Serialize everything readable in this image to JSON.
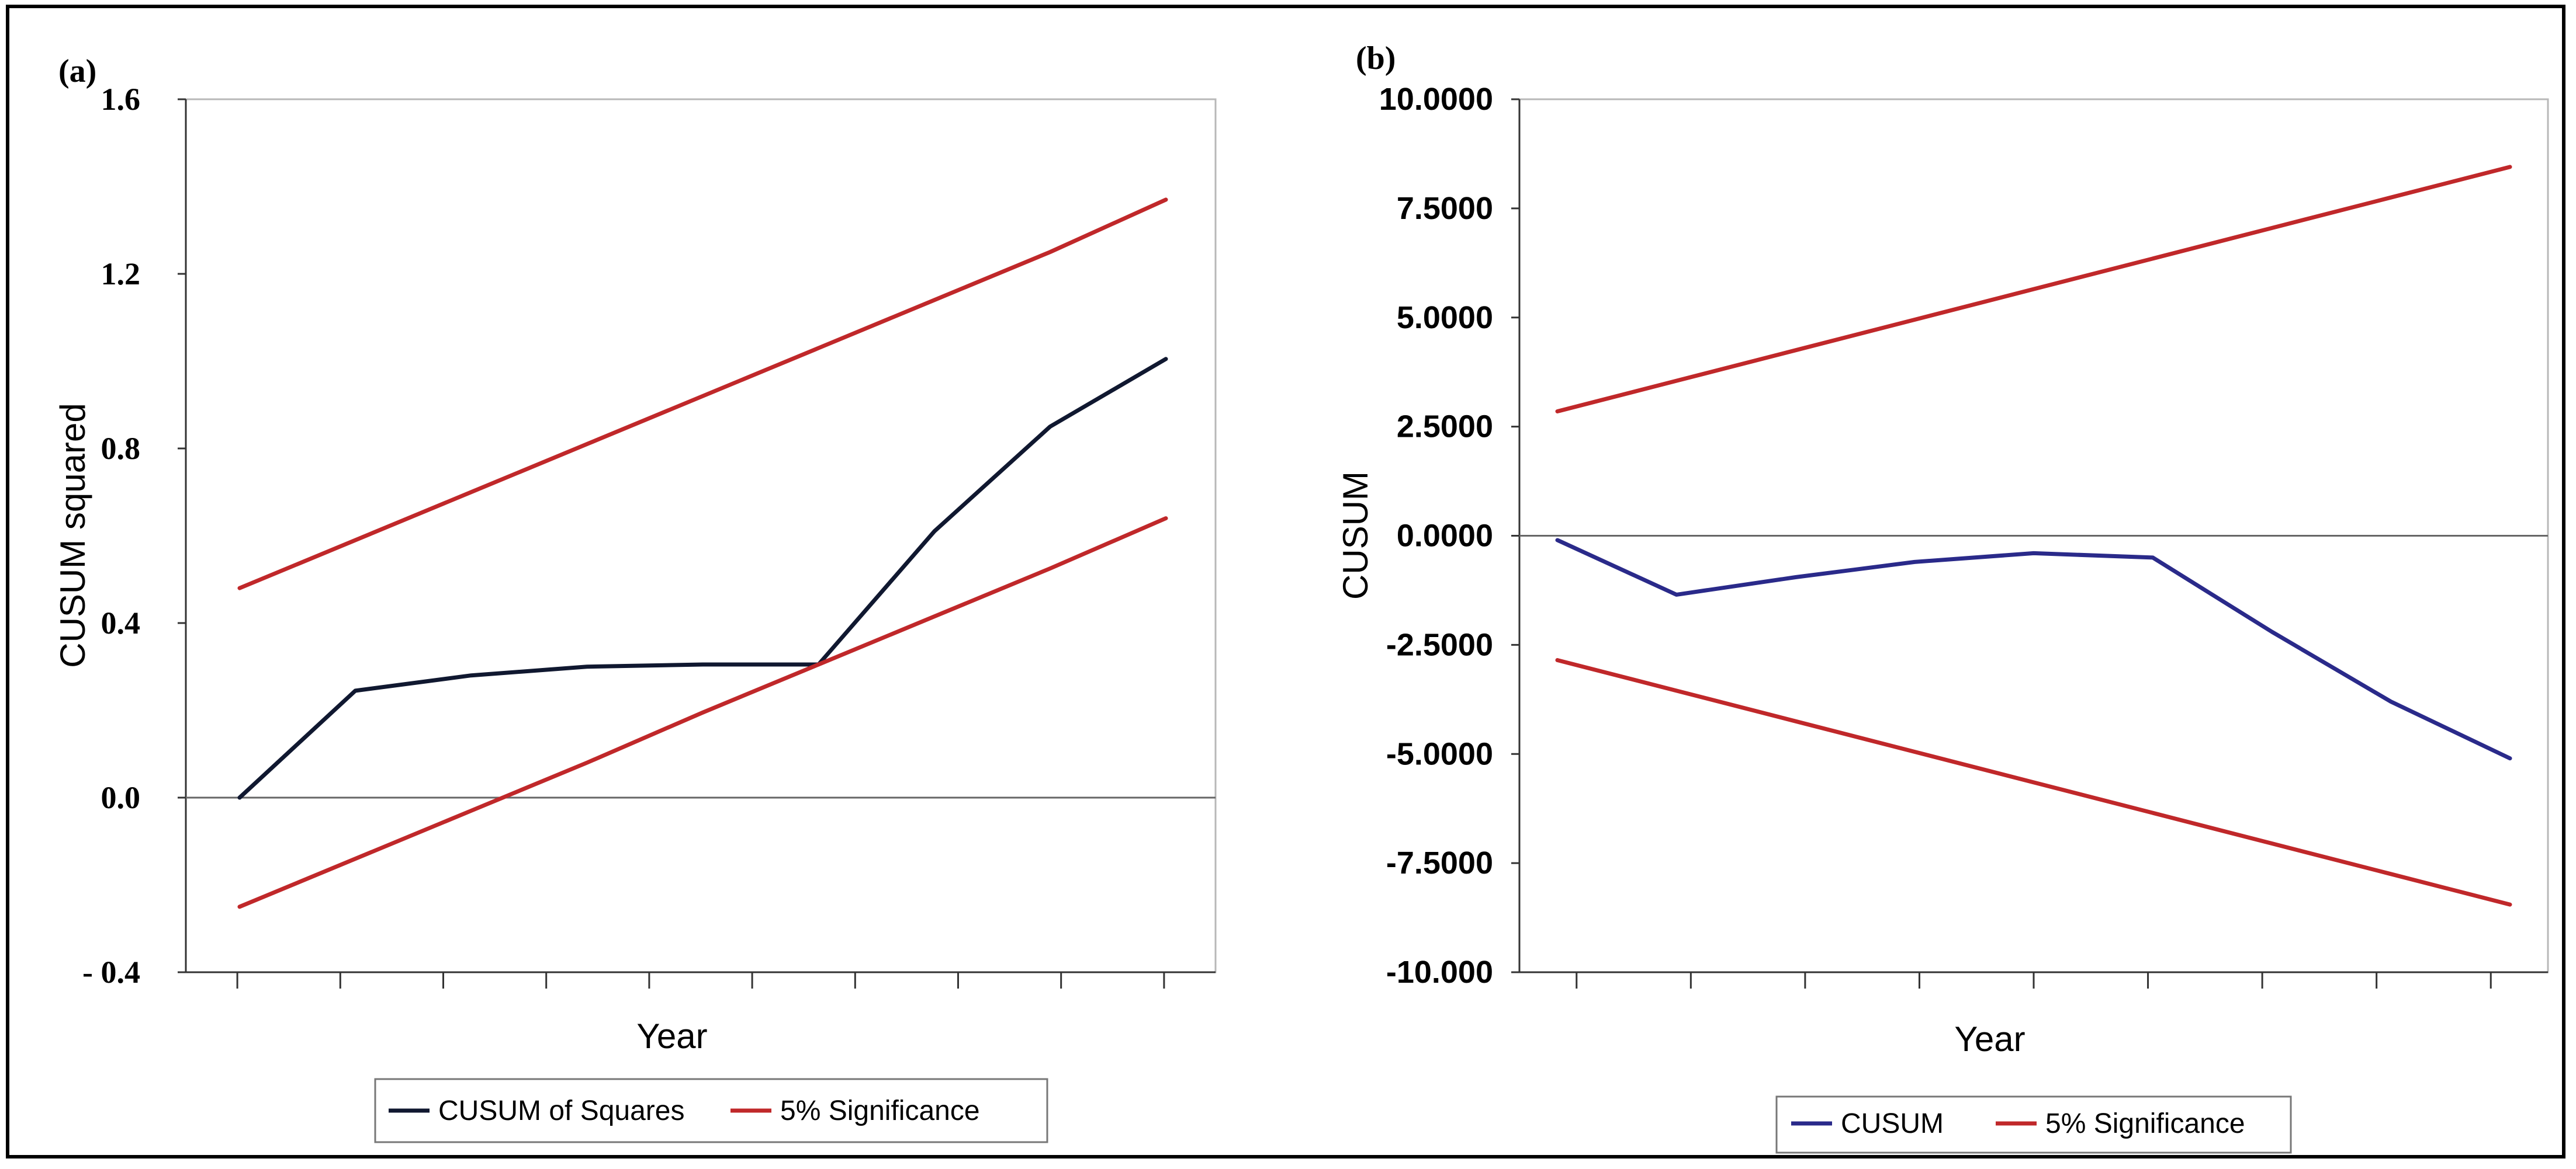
{
  "chart_data": [
    {
      "type": "line",
      "panel_label": "(a)",
      "xlabel": "Year",
      "ylabel": "CUSUM squared",
      "ylim": [
        -0.4,
        1.6
      ],
      "yticks": [
        "1.6",
        "1.2",
        "0.8",
        "0.4",
        "0.0",
        "- 0.4"
      ],
      "ytick_values": [
        1.6,
        1.2,
        0.8,
        0.4,
        0.0,
        -0.4
      ],
      "x": [
        0,
        1,
        2,
        3,
        4,
        5,
        6,
        7,
        8
      ],
      "series": [
        {
          "name": "CUSUM of Squares",
          "color": "#101830",
          "values": [
            0.0,
            0.245,
            0.28,
            0.3,
            0.305,
            0.305,
            0.61,
            0.85,
            1.005
          ]
        },
        {
          "name": "5% Significance",
          "color": "#c0282a",
          "values": [
            -0.25,
            -0.14,
            -0.03,
            0.08,
            0.195,
            0.305,
            0.415,
            0.525,
            0.64
          ]
        },
        {
          "name": "5% Significance",
          "color": "#c0282a",
          "values": [
            0.48,
            0.59,
            0.7,
            0.81,
            0.92,
            1.03,
            1.14,
            1.25,
            1.37
          ]
        }
      ],
      "legend": [
        {
          "label": "CUSUM of Squares",
          "color": "#101830"
        },
        {
          "label": "5% Significance",
          "color": "#c0282a"
        }
      ],
      "legend_position": "bottom"
    },
    {
      "type": "line",
      "panel_label": "(b)",
      "xlabel": "Year",
      "ylabel": "CUSUM",
      "ylim": [
        -10.0,
        10.0
      ],
      "yticks": [
        "10.0000",
        "7.5000",
        "5.0000",
        "2.5000",
        "0.0000",
        "-2.5000",
        "-5.0000",
        "-7.5000",
        "-10.000"
      ],
      "ytick_values": [
        10,
        7.5,
        5,
        2.5,
        0,
        -2.5,
        -5,
        -7.5,
        -10
      ],
      "x": [
        0,
        1,
        2,
        3,
        4,
        5,
        6,
        7,
        8
      ],
      "series": [
        {
          "name": "CUSUM",
          "color": "#2a2a8a",
          "values": [
            -0.1,
            -1.35,
            -0.95,
            -0.6,
            -0.4,
            -0.5,
            -2.2,
            -3.8,
            -5.1
          ]
        },
        {
          "name": "5% Significance",
          "color": "#c0282a",
          "values": [
            -2.85,
            -3.55,
            -4.25,
            -4.95,
            -5.65,
            -6.35,
            -7.05,
            -7.75,
            -8.45
          ]
        },
        {
          "name": "5% Significance",
          "color": "#c0282a",
          "values": [
            2.85,
            3.55,
            4.25,
            4.95,
            5.65,
            6.35,
            7.05,
            7.75,
            8.45
          ]
        }
      ],
      "legend": [
        {
          "label": "CUSUM",
          "color": "#2a2a8a"
        },
        {
          "label": "5% Significance",
          "color": "#c0282a"
        }
      ],
      "legend_position": "bottom"
    }
  ]
}
